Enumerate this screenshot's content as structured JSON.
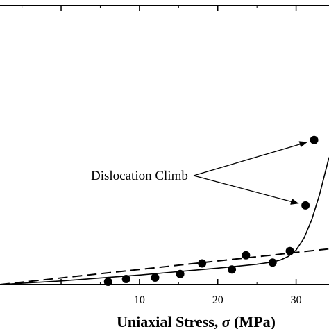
{
  "chart_data": {
    "type": "scatter",
    "xlabel_prefix": "Uniaxial Stress, ",
    "xlabel_symbol": "σ",
    "xlabel_unit": " (MPa)",
    "ylabel": "",
    "xlim": [
      -7.8,
      34.2
    ],
    "ylim": [
      0,
      1
    ],
    "x_ticks": [
      10,
      20,
      30
    ],
    "grid": false,
    "series": [
      {
        "kind": "points",
        "x": [
          6.0,
          8.3,
          12.0,
          15.2,
          18.0,
          21.8,
          23.6,
          27.0,
          29.2,
          31.2,
          32.3
        ],
        "y": [
          0.01,
          0.02,
          0.025,
          0.038,
          0.076,
          0.054,
          0.105,
          0.079,
          0.12,
          0.284,
          0.518
        ]
      },
      {
        "kind": "dashed-line",
        "x": [
          -7.8,
          34.2
        ],
        "y": [
          0.0,
          0.128
        ]
      },
      {
        "kind": "solid-curve",
        "x": [
          -7.8,
          0,
          10,
          20,
          25,
          27,
          28,
          29,
          30,
          31,
          32,
          33,
          34.2
        ],
        "y": [
          0.0,
          0.013,
          0.034,
          0.059,
          0.073,
          0.081,
          0.088,
          0.101,
          0.124,
          0.166,
          0.233,
          0.324,
          0.456
        ]
      }
    ],
    "annotations": [
      {
        "text": "Dislocation Climb",
        "targets": [
          [
            32.3,
            0.518
          ],
          [
            31.2,
            0.284
          ]
        ]
      }
    ]
  }
}
